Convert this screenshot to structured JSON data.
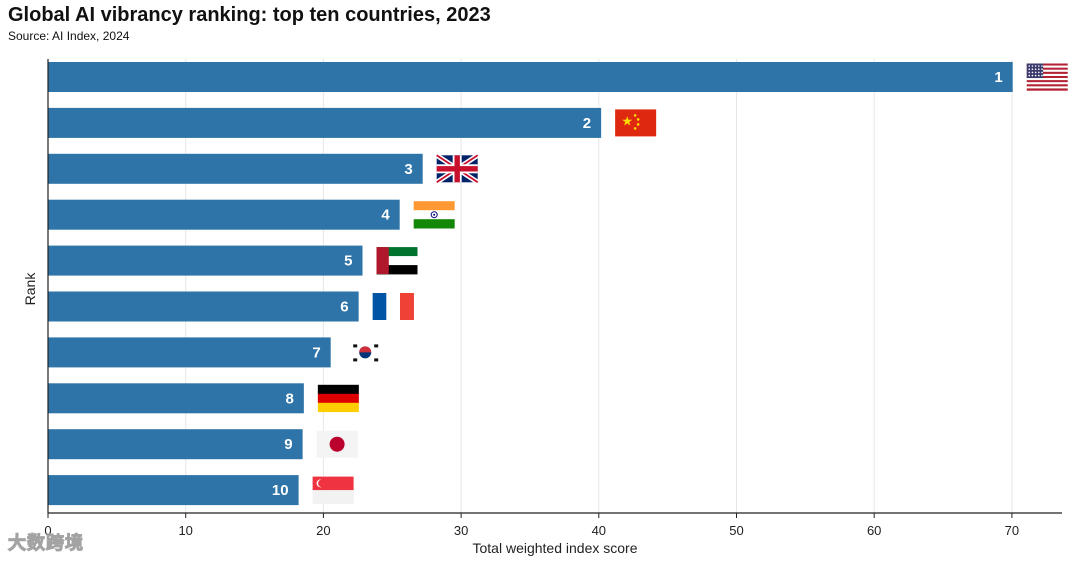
{
  "chart_data": {
    "type": "bar",
    "orientation": "horizontal",
    "title": "Global AI vibrancy ranking: top ten countries, 2023",
    "subtitle": "Source: AI Index, 2024",
    "xlabel": "Total weighted index score",
    "ylabel": "Rank",
    "xlim": [
      0,
      74
    ],
    "xticks": [
      0,
      10,
      20,
      30,
      40,
      50,
      60,
      70
    ],
    "grid": true,
    "bar_color": "#2e74a8",
    "categories": [
      "1",
      "2",
      "3",
      "4",
      "5",
      "6",
      "7",
      "8",
      "9",
      "10"
    ],
    "countries": [
      "United States",
      "China",
      "United Kingdom",
      "India",
      "United Arab Emirates",
      "France",
      "South Korea",
      "Germany",
      "Japan",
      "Singapore"
    ],
    "flag_icons": [
      "us-flag-icon",
      "china-flag-icon",
      "uk-flag-icon",
      "india-flag-icon",
      "uae-flag-icon",
      "france-flag-icon",
      "south-korea-flag-icon",
      "germany-flag-icon",
      "japan-flag-icon",
      "singapore-flag-icon"
    ],
    "values": [
      70.06,
      40.17,
      27.21,
      25.54,
      22.84,
      22.56,
      20.53,
      18.58,
      18.49,
      18.2
    ]
  },
  "watermark": "大数跨境"
}
